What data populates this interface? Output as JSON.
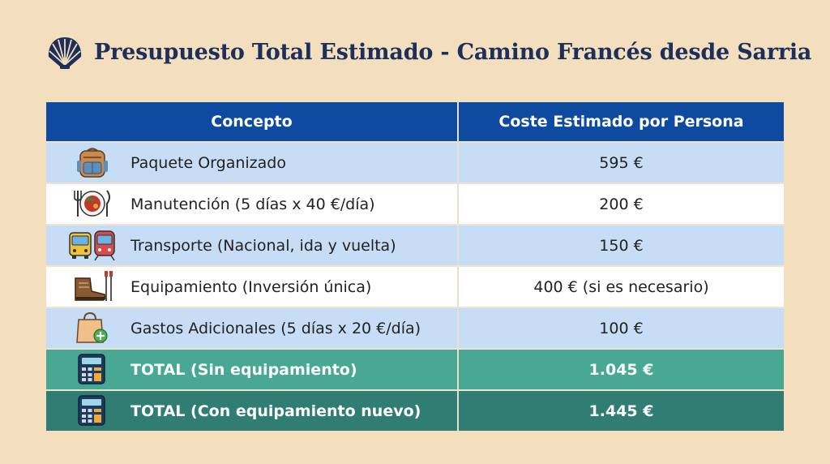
{
  "title": "Presupuesto Total Estimado - Camino Francés desde Sarria",
  "table": {
    "headers": [
      "Concepto",
      "Coste Estimado por Persona"
    ],
    "rows": [
      {
        "icon": "backpack-icon",
        "concepto": "Paquete Organizado",
        "coste": "595 €"
      },
      {
        "icon": "cutlery-plate-icon",
        "concepto": "Manutención (5 días x 40 €/día)",
        "coste": "200 €"
      },
      {
        "icon": "bus-train-icon",
        "concepto": "Transporte (Nacional, ida y vuelta)",
        "coste": "150 €"
      },
      {
        "icon": "boot-poles-icon",
        "concepto": "Equipamiento (Inversión única)",
        "coste": "400 € (si es necesario)"
      },
      {
        "icon": "shopping-bag-plus-icon",
        "concepto": "Gastos Adicionales (5 días x 20 €/día)",
        "coste": "100 €"
      },
      {
        "icon": "calculator-icon",
        "concepto": "TOTAL (Sin equipamiento)",
        "coste": "1.045 €"
      },
      {
        "icon": "calculator-icon",
        "concepto": "TOTAL (Con equipamiento nuevo)",
        "coste": "1.445 €"
      }
    ]
  },
  "colors": {
    "background": "#f3dfbd",
    "header": "#0d4aa0",
    "title": "#1d2f5a",
    "row_blue": "#c7ddf5",
    "total1": "#48a894",
    "total2": "#2f7d73"
  }
}
